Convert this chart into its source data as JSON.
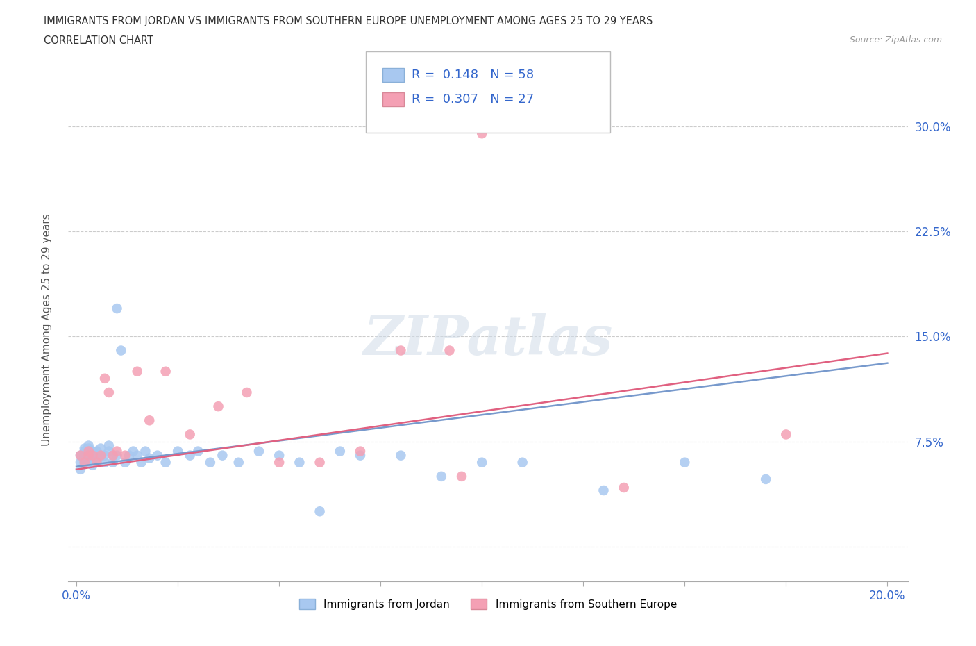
{
  "title_line1": "IMMIGRANTS FROM JORDAN VS IMMIGRANTS FROM SOUTHERN EUROPE UNEMPLOYMENT AMONG AGES 25 TO 29 YEARS",
  "title_line2": "CORRELATION CHART",
  "source_text": "Source: ZipAtlas.com",
  "ylabel": "Unemployment Among Ages 25 to 29 years",
  "xlim": [
    -0.002,
    0.205
  ],
  "ylim": [
    -0.025,
    0.335
  ],
  "xticks": [
    0.0,
    0.025,
    0.05,
    0.075,
    0.1,
    0.125,
    0.15,
    0.175,
    0.2
  ],
  "xtick_labels": [
    "0.0%",
    "",
    "",
    "",
    "",
    "",
    "",
    "",
    "20.0%"
  ],
  "yticks": [
    0.0,
    0.075,
    0.15,
    0.225,
    0.3
  ],
  "ytick_labels": [
    "",
    "7.5%",
    "15.0%",
    "22.5%",
    "30.0%"
  ],
  "jordan_color": "#a8c8f0",
  "southern_color": "#f4a0b4",
  "jordan_line_color": "#7799cc",
  "southern_line_color": "#e06080",
  "legend_R1": "0.148",
  "legend_N1": "58",
  "legend_R2": "0.307",
  "legend_N2": "27",
  "watermark": "ZIPatlas",
  "jordan_x": [
    0.001,
    0.001,
    0.001,
    0.002,
    0.002,
    0.002,
    0.002,
    0.003,
    0.003,
    0.003,
    0.003,
    0.003,
    0.004,
    0.004,
    0.004,
    0.004,
    0.005,
    0.005,
    0.005,
    0.006,
    0.006,
    0.007,
    0.007,
    0.008,
    0.008,
    0.009,
    0.009,
    0.01,
    0.01,
    0.011,
    0.012,
    0.013,
    0.014,
    0.015,
    0.016,
    0.017,
    0.018,
    0.02,
    0.022,
    0.025,
    0.028,
    0.03,
    0.033,
    0.036,
    0.04,
    0.045,
    0.05,
    0.055,
    0.06,
    0.065,
    0.07,
    0.08,
    0.09,
    0.1,
    0.11,
    0.13,
    0.15,
    0.17
  ],
  "jordan_y": [
    0.055,
    0.06,
    0.065,
    0.06,
    0.065,
    0.068,
    0.07,
    0.06,
    0.063,
    0.067,
    0.07,
    0.072,
    0.058,
    0.062,
    0.065,
    0.068,
    0.06,
    0.065,
    0.068,
    0.065,
    0.07,
    0.06,
    0.065,
    0.068,
    0.072,
    0.06,
    0.065,
    0.17,
    0.065,
    0.14,
    0.06,
    0.065,
    0.068,
    0.065,
    0.06,
    0.068,
    0.063,
    0.065,
    0.06,
    0.068,
    0.065,
    0.068,
    0.06,
    0.065,
    0.06,
    0.068,
    0.065,
    0.06,
    0.025,
    0.068,
    0.065,
    0.065,
    0.05,
    0.06,
    0.06,
    0.04,
    0.06,
    0.048
  ],
  "southern_x": [
    0.001,
    0.002,
    0.003,
    0.003,
    0.004,
    0.005,
    0.006,
    0.007,
    0.008,
    0.009,
    0.01,
    0.012,
    0.015,
    0.018,
    0.022,
    0.028,
    0.035,
    0.042,
    0.05,
    0.06,
    0.07,
    0.08,
    0.092,
    0.095,
    0.1,
    0.135,
    0.175
  ],
  "southern_y": [
    0.065,
    0.06,
    0.065,
    0.068,
    0.065,
    0.06,
    0.065,
    0.12,
    0.11,
    0.065,
    0.068,
    0.065,
    0.125,
    0.09,
    0.125,
    0.08,
    0.1,
    0.11,
    0.06,
    0.06,
    0.068,
    0.14,
    0.14,
    0.05,
    0.295,
    0.042,
    0.08
  ],
  "jordan_trend": [
    0.057,
    0.131
  ],
  "southern_trend": [
    0.055,
    0.138
  ]
}
